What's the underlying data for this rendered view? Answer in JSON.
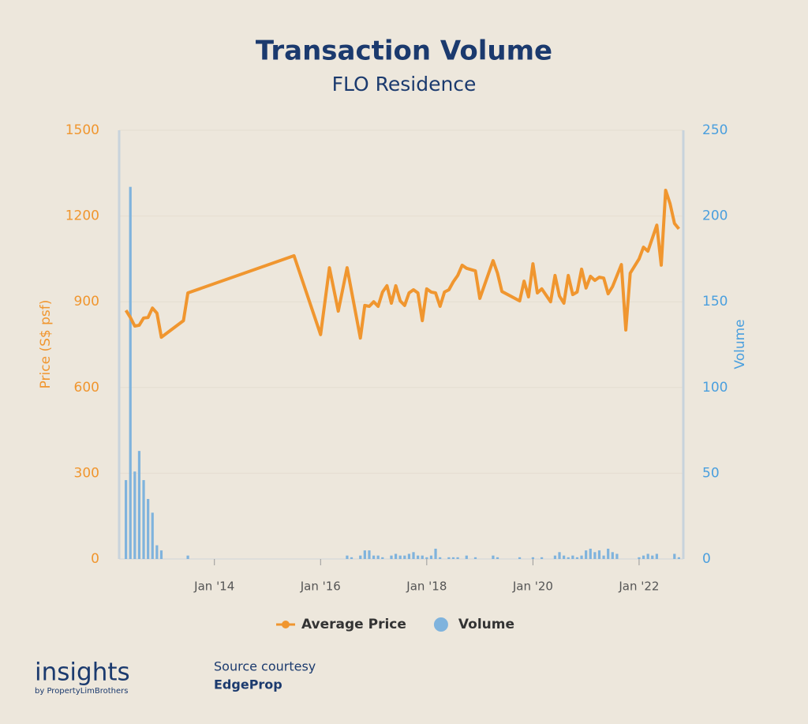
{
  "chart_data": {
    "type": "combo",
    "title": "Transaction Volume",
    "subtitle": "FLO Residence",
    "y_label": "Price (S$ psf)",
    "y2_label": "Volume",
    "xlim": [
      "2012-04",
      "2022-11"
    ],
    "xticks": [
      {
        "value": "2014-01",
        "label": "Jan '14"
      },
      {
        "value": "2016-01",
        "label": "Jan '16"
      },
      {
        "value": "2018-01",
        "label": "Jan '18"
      },
      {
        "value": "2020-01",
        "label": "Jan '20"
      },
      {
        "value": "2022-01",
        "label": "Jan '22"
      }
    ],
    "ylim": [
      0,
      1500
    ],
    "yticks": [
      0,
      300,
      600,
      900,
      1200,
      1500
    ],
    "y2lim": [
      0,
      250
    ],
    "y2ticks": [
      0,
      50,
      100,
      150,
      200,
      250
    ],
    "grid": true,
    "legend": "bottom",
    "series": [
      {
        "name": "Average Price",
        "type": "line",
        "color": "#f0962f",
        "axis": "y",
        "x": [
          "2012-05",
          "2012-06",
          "2012-07",
          "2012-08",
          "2012-09",
          "2012-10",
          "2012-11",
          "2012-12",
          "2013-01",
          "2013-06",
          "2013-07",
          "2015-07",
          "2016-01",
          "2016-03",
          "2016-05",
          "2016-07",
          "2016-10",
          "2016-11",
          "2016-12",
          "2017-01",
          "2017-02",
          "2017-03",
          "2017-04",
          "2017-05",
          "2017-06",
          "2017-07",
          "2017-08",
          "2017-09",
          "2017-10",
          "2017-11",
          "2017-12",
          "2018-01",
          "2018-02",
          "2018-03",
          "2018-04",
          "2018-05",
          "2018-06",
          "2018-07",
          "2018-08",
          "2018-09",
          "2018-10",
          "2018-12",
          "2019-01",
          "2019-04",
          "2019-05",
          "2019-06",
          "2019-10",
          "2019-11",
          "2019-12",
          "2020-01",
          "2020-02",
          "2020-03",
          "2020-05",
          "2020-06",
          "2020-07",
          "2020-08",
          "2020-09",
          "2020-10",
          "2020-11",
          "2020-12",
          "2021-01",
          "2021-02",
          "2021-03",
          "2021-04",
          "2021-05",
          "2021-06",
          "2021-07",
          "2021-09",
          "2021-10",
          "2021-11",
          "2022-01",
          "2022-02",
          "2022-03",
          "2022-05",
          "2022-06",
          "2022-07",
          "2022-08",
          "2022-09",
          "2022-10"
        ],
        "values": [
          870,
          845,
          815,
          818,
          843,
          845,
          878,
          860,
          776,
          834,
          931,
          1061,
          785,
          1019,
          867,
          1019,
          773,
          887,
          884,
          900,
          884,
          934,
          956,
          895,
          956,
          903,
          887,
          931,
          942,
          931,
          834,
          945,
          934,
          931,
          884,
          934,
          942,
          970,
          992,
          1028,
          1017,
          1008,
          912,
          1044,
          1000,
          936,
          903,
          972,
          917,
          1033,
          931,
          945,
          900,
          992,
          920,
          895,
          992,
          925,
          934,
          1014,
          948,
          989,
          975,
          986,
          983,
          928,
          953,
          1030,
          801,
          1000,
          1050,
          1091,
          1077,
          1168,
          1028,
          1290,
          1243,
          1174,
          1155
        ]
      },
      {
        "name": "Volume",
        "type": "bar",
        "color": "#7fb3dd",
        "axis": "y2",
        "x": [
          "2012-05",
          "2012-06",
          "2012-07",
          "2012-08",
          "2012-09",
          "2012-10",
          "2012-11",
          "2012-12",
          "2013-01",
          "2013-07",
          "2016-07",
          "2016-08",
          "2016-10",
          "2016-11",
          "2016-12",
          "2017-01",
          "2017-02",
          "2017-03",
          "2017-05",
          "2017-06",
          "2017-07",
          "2017-08",
          "2017-09",
          "2017-10",
          "2017-11",
          "2017-12",
          "2018-01",
          "2018-02",
          "2018-03",
          "2018-04",
          "2018-06",
          "2018-07",
          "2018-08",
          "2018-10",
          "2018-12",
          "2019-04",
          "2019-05",
          "2019-10",
          "2020-01",
          "2020-03",
          "2020-06",
          "2020-07",
          "2020-08",
          "2020-09",
          "2020-10",
          "2020-11",
          "2020-12",
          "2021-01",
          "2021-02",
          "2021-03",
          "2021-04",
          "2021-05",
          "2021-06",
          "2021-07",
          "2021-08",
          "2022-01",
          "2022-02",
          "2022-03",
          "2022-04",
          "2022-05",
          "2022-09",
          "2022-10"
        ],
        "values": [
          46,
          217,
          51,
          63,
          46,
          35,
          27,
          8,
          5,
          2,
          2,
          1,
          2,
          5,
          5,
          2,
          2,
          1,
          2,
          3,
          2,
          2,
          3,
          4,
          2,
          2,
          1,
          2,
          6,
          1,
          1,
          1,
          1,
          2,
          1,
          2,
          1,
          1,
          1,
          1,
          2,
          4,
          2,
          1,
          2,
          1,
          2,
          5,
          6,
          4,
          5,
          2,
          6,
          4,
          3,
          1,
          2,
          3,
          2,
          3,
          3,
          1
        ]
      }
    ]
  },
  "footer": {
    "brand": "insights",
    "brand_sub": "by PropertyLimBrothers",
    "source_label": "Source courtesy",
    "source": "EdgeProp"
  }
}
